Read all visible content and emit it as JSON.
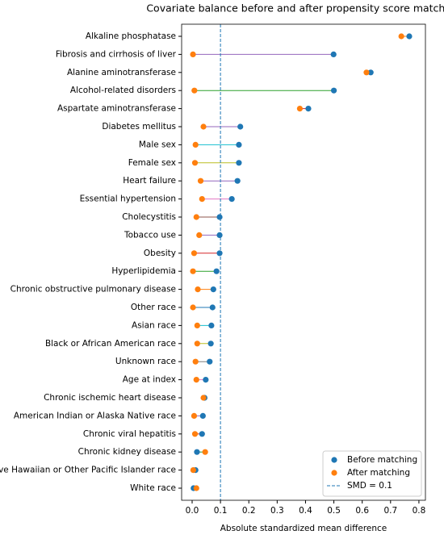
{
  "chart_data": {
    "type": "dumbbell",
    "title": "Covariate balance before and after propensity score matching",
    "x_label": "Absolute standardized mean difference",
    "categories": [
      "Alkaline phosphatase",
      "Fibrosis and cirrhosis of liver",
      "Alanine aminotransferase",
      "Alcohol-related disorders",
      "Aspartate aminotransferase",
      "Diabetes mellitus",
      "Male sex",
      "Female sex",
      "Heart failure",
      "Essential hypertension",
      "Cholecystitis",
      "Tobacco use",
      "Obesity",
      "Hyperlipidemia",
      "Chronic obstructive pulmonary disease",
      "Other race",
      "Asian race",
      "Black or African American race",
      "Unknown race",
      "Age at index",
      "Chronic ischemic heart disease",
      "American Indian or Alaska Native race",
      "Chronic viral hepatitis",
      "Chronic kidney disease",
      "Native Hawaiian or Other Pacific Islander race",
      "White race"
    ],
    "series": [
      {
        "name": "Before matching",
        "color": "#1f77b4",
        "values": [
          0.766,
          0.499,
          0.63,
          0.5,
          0.41,
          0.17,
          0.165,
          0.165,
          0.16,
          0.14,
          0.097,
          0.097,
          0.097,
          0.086,
          0.075,
          0.072,
          0.068,
          0.066,
          0.062,
          0.048,
          0.044,
          0.038,
          0.035,
          0.017,
          0.012,
          0.005
        ]
      },
      {
        "name": "After matching",
        "color": "#ff7f0e",
        "values": [
          0.738,
          0.003,
          0.615,
          0.008,
          0.38,
          0.04,
          0.012,
          0.01,
          0.03,
          0.035,
          0.015,
          0.025,
          0.007,
          0.003,
          0.02,
          0.003,
          0.018,
          0.018,
          0.012,
          0.015,
          0.04,
          0.007,
          0.01,
          0.046,
          0.004,
          0.015
        ]
      }
    ],
    "connector_colors": [
      "#ff7f0e",
      "#9467bd",
      "#d62728",
      "#2ca02c",
      "#d62728",
      "#9467bd",
      "#17becf",
      "#bcbd22",
      "#9467bd",
      "#e377c2",
      "#8c564b",
      "#9467bd",
      "#d62728",
      "#2ca02c",
      "#ff7f0e",
      "#1f77b4",
      "#17becf",
      "#bcbd22",
      "#7f7f7f",
      "#e377c2",
      "#8c564b",
      "#9467bd",
      "#d62728",
      "#2ca02c",
      "#ff7f0e",
      "#1f77b4"
    ],
    "reference_line": {
      "value": 0.1,
      "label": "SMD = 0.1",
      "color": "#1f77b4"
    },
    "xlim": [
      -0.037,
      0.823
    ],
    "xticks": [
      {
        "value": 0,
        "label": "0.0"
      },
      0.1,
      0.2,
      0.3,
      0.4,
      0.5,
      0.6,
      0.7,
      0.8
    ],
    "legend": "lower right"
  }
}
